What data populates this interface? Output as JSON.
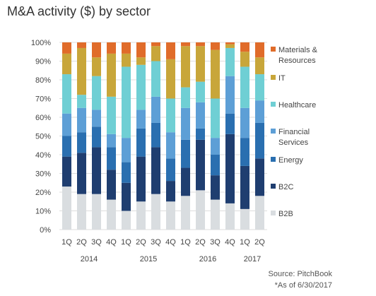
{
  "title": "M&A activity ($) by sector",
  "source": "Source: PitchBook",
  "as_of": "*As of 6/30/2017",
  "chart_data": {
    "type": "bar",
    "stacked": true,
    "categories": [
      "1Q",
      "2Q",
      "3Q",
      "4Q",
      "1Q",
      "2Q",
      "3Q",
      "4Q",
      "1Q",
      "2Q",
      "3Q",
      "4Q",
      "1Q",
      "2Q"
    ],
    "years": [
      {
        "label": "2014",
        "start": 0,
        "end": 3
      },
      {
        "label": "2015",
        "start": 4,
        "end": 7
      },
      {
        "label": "2016",
        "start": 8,
        "end": 11
      },
      {
        "label": "2017",
        "start": 12,
        "end": 13
      }
    ],
    "ylim": [
      0,
      100
    ],
    "y_ticks": [
      "0%",
      "10%",
      "20%",
      "30%",
      "40%",
      "50%",
      "60%",
      "70%",
      "80%",
      "90%",
      "100%"
    ],
    "legend_position": "right",
    "series": [
      {
        "name": "B2B",
        "color": "#d9dde0",
        "values": [
          23,
          19,
          19,
          16,
          10,
          15,
          19,
          15,
          18,
          21,
          16,
          14,
          11,
          18
        ]
      },
      {
        "name": "B2C",
        "color": "#1f3e70",
        "values": [
          16,
          22,
          25,
          16,
          15,
          24,
          25,
          11,
          15,
          27,
          13,
          37,
          23,
          20
        ]
      },
      {
        "name": "Energy",
        "color": "#2a6fb0",
        "values": [
          11,
          11,
          11,
          12,
          11,
          15,
          13,
          12,
          15,
          6,
          11,
          11,
          15,
          19
        ]
      },
      {
        "name": "Financial Services",
        "color": "#5d9fd6",
        "values": [
          12,
          13,
          9,
          7,
          13,
          10,
          14,
          14,
          17,
          14,
          9,
          20,
          16,
          12
        ]
      },
      {
        "name": "Healthcare",
        "color": "#6fcfd4",
        "values": [
          21,
          7,
          18,
          20,
          38,
          24,
          19,
          18,
          11,
          11,
          21,
          15,
          22,
          14
        ]
      },
      {
        "name": "IT",
        "color": "#c8a63a",
        "values": [
          11,
          25,
          10,
          23,
          7,
          4,
          8,
          21,
          22,
          19,
          26,
          2,
          8,
          9
        ]
      },
      {
        "name": "Materials & Resources",
        "color": "#e06c2a",
        "values": [
          6,
          3,
          8,
          6,
          6,
          8,
          2,
          9,
          2,
          2,
          4,
          1,
          5,
          8
        ]
      }
    ]
  }
}
